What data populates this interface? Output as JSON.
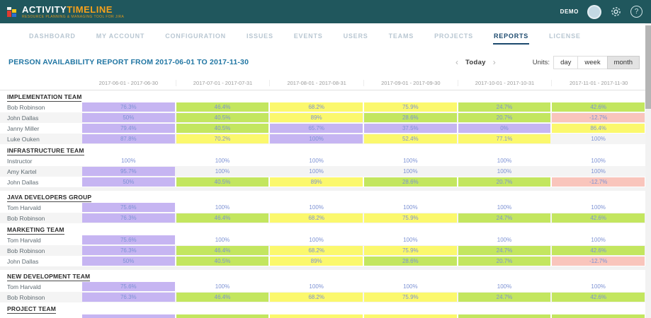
{
  "topbar": {
    "brand_primary": "ACTIVITY",
    "brand_secondary": "TIMELINE",
    "tagline": "RESOURCE PLANNING & MANAGING TOOL FOR JIRA",
    "user": "DEMO",
    "help_glyph": "?"
  },
  "nav": {
    "items": [
      {
        "label": "DASHBOARD",
        "active": false
      },
      {
        "label": "MY ACCOUNT",
        "active": false
      },
      {
        "label": "CONFIGURATION",
        "active": false
      },
      {
        "label": "ISSUES",
        "active": false
      },
      {
        "label": "EVENTS",
        "active": false
      },
      {
        "label": "USERS",
        "active": false
      },
      {
        "label": "TEAMS",
        "active": false
      },
      {
        "label": "PROJECTS",
        "active": false
      },
      {
        "label": "REPORTS",
        "active": true
      },
      {
        "label": "LICENSE",
        "active": false
      }
    ]
  },
  "report": {
    "title": "PERSON AVAILABILITY REPORT FROM 2017-06-01 TO 2017-11-30",
    "prev_glyph": "‹",
    "next_glyph": "›",
    "today_label": "Today",
    "units_label": "Units:",
    "units": [
      "day",
      "week",
      "month"
    ],
    "selected_unit": "month"
  },
  "table": {
    "columns": [
      "2017-06-01 - 2017-06-30",
      "2017-07-01 - 2017-07-31",
      "2017-08-01 - 2017-08-31",
      "2017-09-01 - 2017-09-30",
      "2017-10-01 - 2017-10-31",
      "2017-11-01 - 2017-11-30"
    ],
    "sections": [
      {
        "team": "IMPLEMENTATION TEAM",
        "rows": [
          {
            "name": "Bob Robinson",
            "cells": [
              {
                "value": "76.3%",
                "color": "purple"
              },
              {
                "value": "46.4%",
                "color": "green"
              },
              {
                "value": "68.2%",
                "color": "yellow"
              },
              {
                "value": "75.9%",
                "color": "yellow"
              },
              {
                "value": "24.7%",
                "color": "green"
              },
              {
                "value": "42.6%",
                "color": "green"
              }
            ]
          },
          {
            "name": "John Dallas",
            "cells": [
              {
                "value": "50%",
                "color": "purple"
              },
              {
                "value": "40.5%",
                "color": "green"
              },
              {
                "value": "89%",
                "color": "yellow"
              },
              {
                "value": "28.6%",
                "color": "green"
              },
              {
                "value": "20.7%",
                "color": "green"
              },
              {
                "value": "-12.7%",
                "color": "pink"
              }
            ]
          },
          {
            "name": "Janny Miller",
            "cells": [
              {
                "value": "79.4%",
                "color": "purple"
              },
              {
                "value": "40.5%",
                "color": "green"
              },
              {
                "value": "65.7%",
                "color": "purple"
              },
              {
                "value": "37.5%",
                "color": "purple"
              },
              {
                "value": "0%",
                "color": "purple"
              },
              {
                "value": "86.4%",
                "color": "yellow"
              }
            ]
          },
          {
            "name": "Luke Ouken",
            "cells": [
              {
                "value": "87.8%",
                "color": "purple"
              },
              {
                "value": "70.2%",
                "color": "yellow"
              },
              {
                "value": "100%",
                "color": "purple"
              },
              {
                "value": "52.4%",
                "color": "yellow"
              },
              {
                "value": "77.1%",
                "color": "yellow"
              },
              {
                "value": "100%",
                "color": "plain"
              }
            ]
          }
        ]
      },
      {
        "team": "INFRASTRUCTURE TEAM",
        "rows": [
          {
            "name": "Instructor",
            "cells": [
              {
                "value": "100%",
                "color": "plain"
              },
              {
                "value": "100%",
                "color": "plain"
              },
              {
                "value": "100%",
                "color": "plain"
              },
              {
                "value": "100%",
                "color": "plain"
              },
              {
                "value": "100%",
                "color": "plain"
              },
              {
                "value": "100%",
                "color": "plain"
              }
            ]
          },
          {
            "name": "Amy Kartel",
            "cells": [
              {
                "value": "95.7%",
                "color": "purple"
              },
              {
                "value": "100%",
                "color": "plain"
              },
              {
                "value": "100%",
                "color": "plain"
              },
              {
                "value": "100%",
                "color": "plain"
              },
              {
                "value": "100%",
                "color": "plain"
              },
              {
                "value": "100%",
                "color": "plain"
              }
            ]
          },
          {
            "name": "John Dallas",
            "cells": [
              {
                "value": "50%",
                "color": "purple"
              },
              {
                "value": "40.5%",
                "color": "green"
              },
              {
                "value": "89%",
                "color": "yellow"
              },
              {
                "value": "28.6%",
                "color": "green"
              },
              {
                "value": "20.7%",
                "color": "green"
              },
              {
                "value": "-12.7%",
                "color": "pink"
              }
            ]
          }
        ]
      },
      {
        "team": "JAVA DEVELOPERS GROUP",
        "rows": [
          {
            "name": "Tom Harvald",
            "cells": [
              {
                "value": "75.6%",
                "color": "purple"
              },
              {
                "value": "100%",
                "color": "plain"
              },
              {
                "value": "100%",
                "color": "plain"
              },
              {
                "value": "100%",
                "color": "plain"
              },
              {
                "value": "100%",
                "color": "plain"
              },
              {
                "value": "100%",
                "color": "plain"
              }
            ]
          },
          {
            "name": "Bob Robinson",
            "cells": [
              {
                "value": "76.3%",
                "color": "purple"
              },
              {
                "value": "46.4%",
                "color": "green"
              },
              {
                "value": "68.2%",
                "color": "yellow"
              },
              {
                "value": "75.9%",
                "color": "yellow"
              },
              {
                "value": "24.7%",
                "color": "green"
              },
              {
                "value": "42.6%",
                "color": "green"
              }
            ]
          }
        ]
      },
      {
        "team": "MARKETING TEAM",
        "rows": [
          {
            "name": "Tom Harvald",
            "cells": [
              {
                "value": "75.6%",
                "color": "purple"
              },
              {
                "value": "100%",
                "color": "plain"
              },
              {
                "value": "100%",
                "color": "plain"
              },
              {
                "value": "100%",
                "color": "plain"
              },
              {
                "value": "100%",
                "color": "plain"
              },
              {
                "value": "100%",
                "color": "plain"
              }
            ]
          },
          {
            "name": "Bob Robinson",
            "cells": [
              {
                "value": "76.3%",
                "color": "purple"
              },
              {
                "value": "46.4%",
                "color": "green"
              },
              {
                "value": "68.2%",
                "color": "yellow"
              },
              {
                "value": "75.9%",
                "color": "yellow"
              },
              {
                "value": "24.7%",
                "color": "green"
              },
              {
                "value": "42.6%",
                "color": "green"
              }
            ]
          },
          {
            "name": "John Dallas",
            "cells": [
              {
                "value": "50%",
                "color": "purple"
              },
              {
                "value": "40.5%",
                "color": "green"
              },
              {
                "value": "89%",
                "color": "yellow"
              },
              {
                "value": "28.6%",
                "color": "green"
              },
              {
                "value": "20.7%",
                "color": "green"
              },
              {
                "value": "-12.7%",
                "color": "pink"
              }
            ]
          }
        ]
      },
      {
        "team": "NEW DEVELOPMENT TEAM",
        "rows": [
          {
            "name": "Tom Harvald",
            "cells": [
              {
                "value": "75.6%",
                "color": "purple"
              },
              {
                "value": "100%",
                "color": "plain"
              },
              {
                "value": "100%",
                "color": "plain"
              },
              {
                "value": "100%",
                "color": "plain"
              },
              {
                "value": "100%",
                "color": "plain"
              },
              {
                "value": "100%",
                "color": "plain"
              }
            ]
          },
          {
            "name": "Bob Robinson",
            "cells": [
              {
                "value": "76.3%",
                "color": "purple"
              },
              {
                "value": "46.4%",
                "color": "green"
              },
              {
                "value": "68.2%",
                "color": "yellow"
              },
              {
                "value": "75.9%",
                "color": "yellow"
              },
              {
                "value": "24.7%",
                "color": "green"
              },
              {
                "value": "42.6%",
                "color": "green"
              }
            ]
          }
        ]
      },
      {
        "team": "PROJECT TEAM",
        "rows": [],
        "partial_colors": [
          "purple",
          "green",
          "yellow",
          "yellow",
          "green",
          "green"
        ]
      }
    ]
  },
  "colors": {
    "topbar_bg": "#20575d",
    "brand_orange": "#f5a11c",
    "nav_active": "#1c4a6e",
    "nav_inactive": "#b9c7d2",
    "title_blue": "#2176a3",
    "cell_text": "#7d92d4",
    "purple": "#c6b5f2",
    "green": "#c3e65f",
    "yellow": "#fbf86d",
    "pink": "#f9c5bc",
    "plain": ""
  }
}
